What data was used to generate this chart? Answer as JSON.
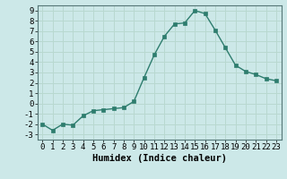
{
  "x": [
    0,
    1,
    2,
    3,
    4,
    5,
    6,
    7,
    8,
    9,
    10,
    11,
    12,
    13,
    14,
    15,
    16,
    17,
    18,
    19,
    20,
    21,
    22,
    23
  ],
  "y": [
    -2,
    -2.6,
    -2,
    -2.1,
    -1.2,
    -0.7,
    -0.6,
    -0.5,
    -0.4,
    0.2,
    2.5,
    4.7,
    6.5,
    7.7,
    7.8,
    9.0,
    8.7,
    7.1,
    5.4,
    3.7,
    3.1,
    2.8,
    2.4,
    2.2
  ],
  "line_color": "#2e7d6e",
  "marker": "s",
  "marker_size": 2.5,
  "bg_color": "#cce8e8",
  "grid_color": "#b8d8d0",
  "xlabel": "Humidex (Indice chaleur)",
  "xlim": [
    -0.5,
    23.5
  ],
  "ylim": [
    -3.5,
    9.5
  ],
  "yticks": [
    -3,
    -2,
    -1,
    0,
    1,
    2,
    3,
    4,
    5,
    6,
    7,
    8,
    9
  ],
  "xticks": [
    0,
    1,
    2,
    3,
    4,
    5,
    6,
    7,
    8,
    9,
    10,
    11,
    12,
    13,
    14,
    15,
    16,
    17,
    18,
    19,
    20,
    21,
    22,
    23
  ],
  "tick_fontsize": 6.5,
  "label_fontsize": 7.5
}
